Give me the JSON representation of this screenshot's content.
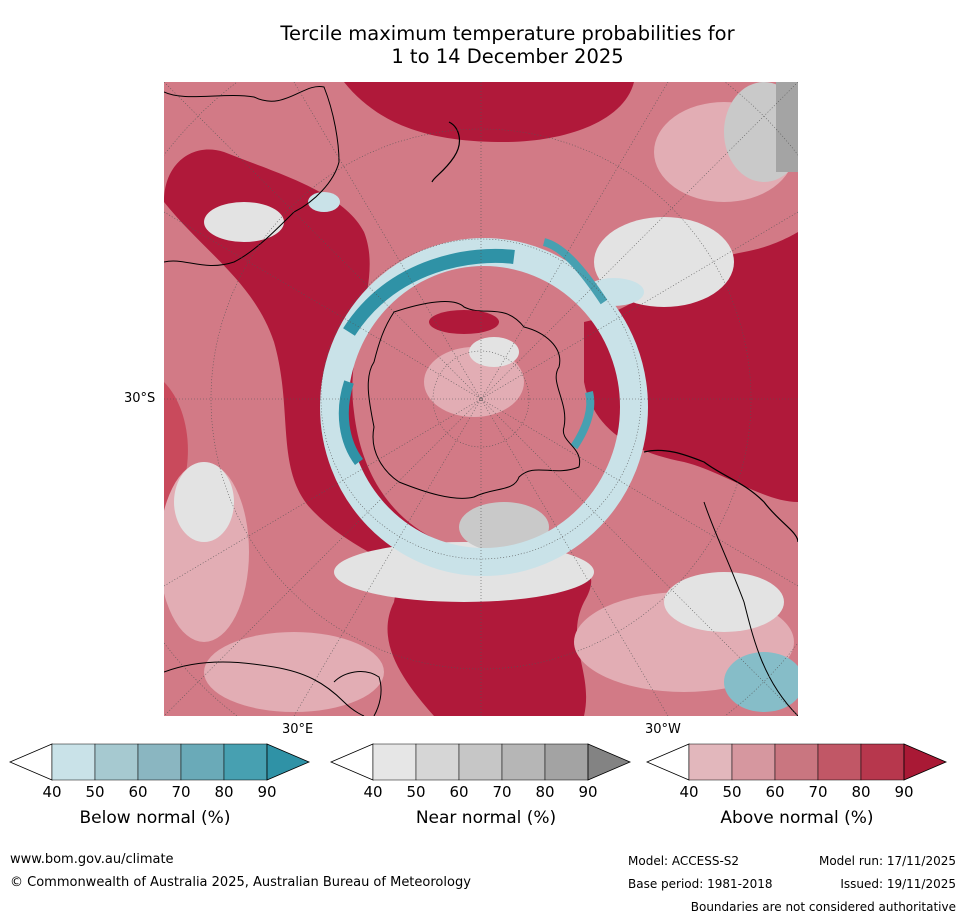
{
  "title": {
    "line1": "Tercile maximum temperature probabilities for",
    "line2": "1 to 14 December 2025"
  },
  "map": {
    "lat_label": "30°S",
    "lon_labels": [
      "30°E",
      "30°W"
    ],
    "colors": {
      "above_extreme": "#b0193a",
      "above_high": "#c94a5c",
      "above_mid": "#d27a86",
      "above_low": "#e2adb4",
      "near_light": "#e3e3e3",
      "near_mid": "#c9c9c9",
      "near_dark": "#a4a4a4",
      "below_light": "#c9e2e8",
      "below_mid": "#86bdc8",
      "below_dark": "#2f92a6",
      "coast": "#000000"
    }
  },
  "legend": {
    "ticks": [
      "40",
      "50",
      "60",
      "70",
      "80",
      "90"
    ],
    "bars": [
      {
        "label": "Below normal (%)",
        "colors": [
          "#c9e2e8",
          "#a6c9d0",
          "#8ab6c1",
          "#6aaab8",
          "#47a0b1"
        ],
        "extend_color": "#2f92a6"
      },
      {
        "label": "Near normal (%)",
        "colors": [
          "#e6e6e6",
          "#d6d6d6",
          "#c6c6c6",
          "#b6b6b6",
          "#a3a3a3"
        ],
        "extend_color": "#838383"
      },
      {
        "label": "Above normal (%)",
        "colors": [
          "#e2b7bc",
          "#d6979f",
          "#c97680",
          "#c15766",
          "#b7374d"
        ],
        "extend_color": "#a91935"
      }
    ]
  },
  "footer": {
    "website": "www.bom.gov.au/climate",
    "copyright": "© Commonwealth of Australia 2025, Australian Bureau of Meteorology",
    "model": "Model: ACCESS-S2",
    "model_run": "Model run: 17/11/2025",
    "base_period": "Base period: 1981-2018",
    "issued": "Issued: 19/11/2025",
    "disclaimer": "Boundaries are not considered authoritative"
  }
}
